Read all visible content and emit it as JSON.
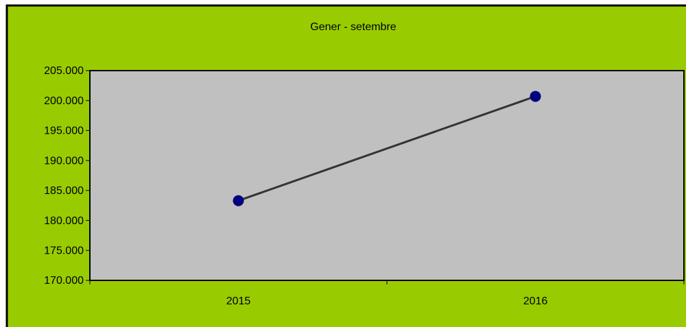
{
  "chart_data": {
    "type": "line",
    "title": "Gener - setembre",
    "categories": [
      "2015",
      "2016"
    ],
    "values": [
      183300,
      200700
    ],
    "color": "#333333",
    "marker_color": "#000080",
    "background": "#99cc00",
    "plot_background": "#c0c0c0",
    "ylim": [
      170000,
      205000
    ],
    "yticks": [
      {
        "value": 170000,
        "label": "170.000"
      },
      {
        "value": 175000,
        "label": "175.000"
      },
      {
        "value": 180000,
        "label": "180.000"
      },
      {
        "value": 185000,
        "label": "185.000"
      },
      {
        "value": 190000,
        "label": "190.000"
      },
      {
        "value": 195000,
        "label": "195.000"
      },
      {
        "value": 200000,
        "label": "200.000"
      },
      {
        "value": 205000,
        "label": "205.000"
      }
    ],
    "grid": false
  }
}
